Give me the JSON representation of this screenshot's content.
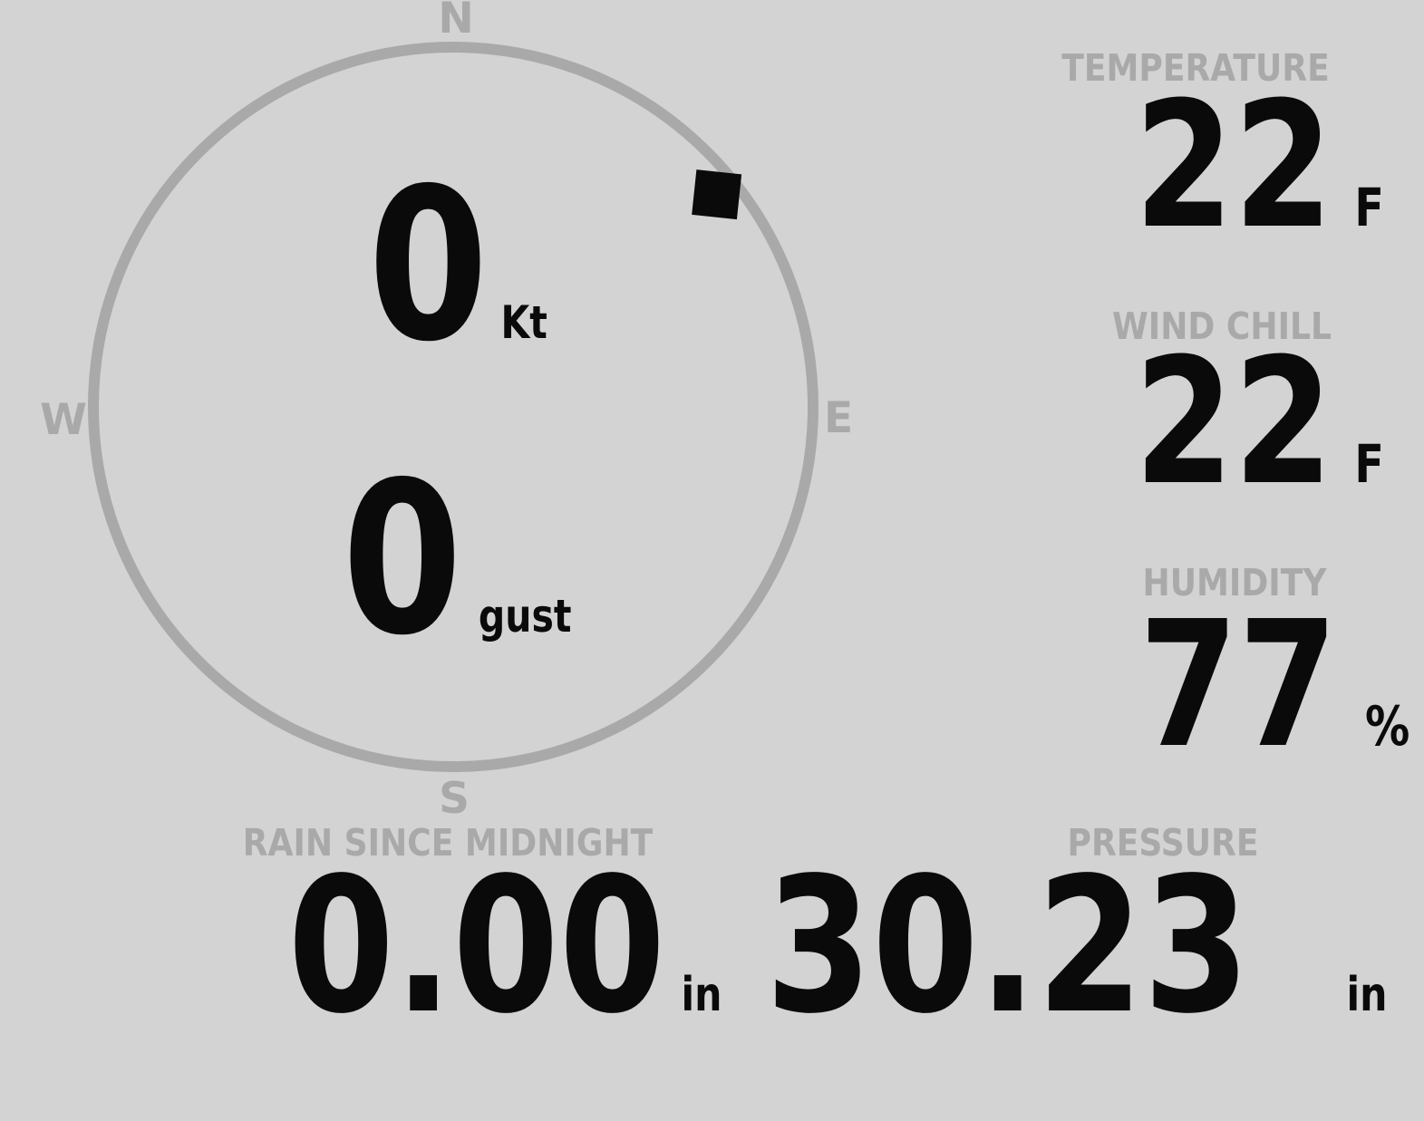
{
  "colors": {
    "background": "#d3d3d3",
    "muted": "#a9a9a9",
    "value": "#0a0a0a"
  },
  "compass": {
    "labels": {
      "north": "N",
      "east": "E",
      "south": "S",
      "west": "W"
    },
    "wind_speed": {
      "value": "0",
      "unit": "Kt"
    },
    "wind_gust": {
      "value": "0",
      "unit": "gust"
    },
    "wind_direction_deg": 51
  },
  "metrics": {
    "temperature": {
      "label": "TEMPERATURE",
      "value": "22",
      "unit": "F"
    },
    "wind_chill": {
      "label": "WIND CHILL",
      "value": "22",
      "unit": "F"
    },
    "humidity": {
      "label": "HUMIDITY",
      "value": "77",
      "unit": "%"
    },
    "rain_since_midnight": {
      "label": "RAIN SINCE MIDNIGHT",
      "value": "0.00",
      "unit": "in"
    },
    "pressure": {
      "label": "PRESSURE",
      "value": "30.23",
      "unit": "in"
    }
  }
}
